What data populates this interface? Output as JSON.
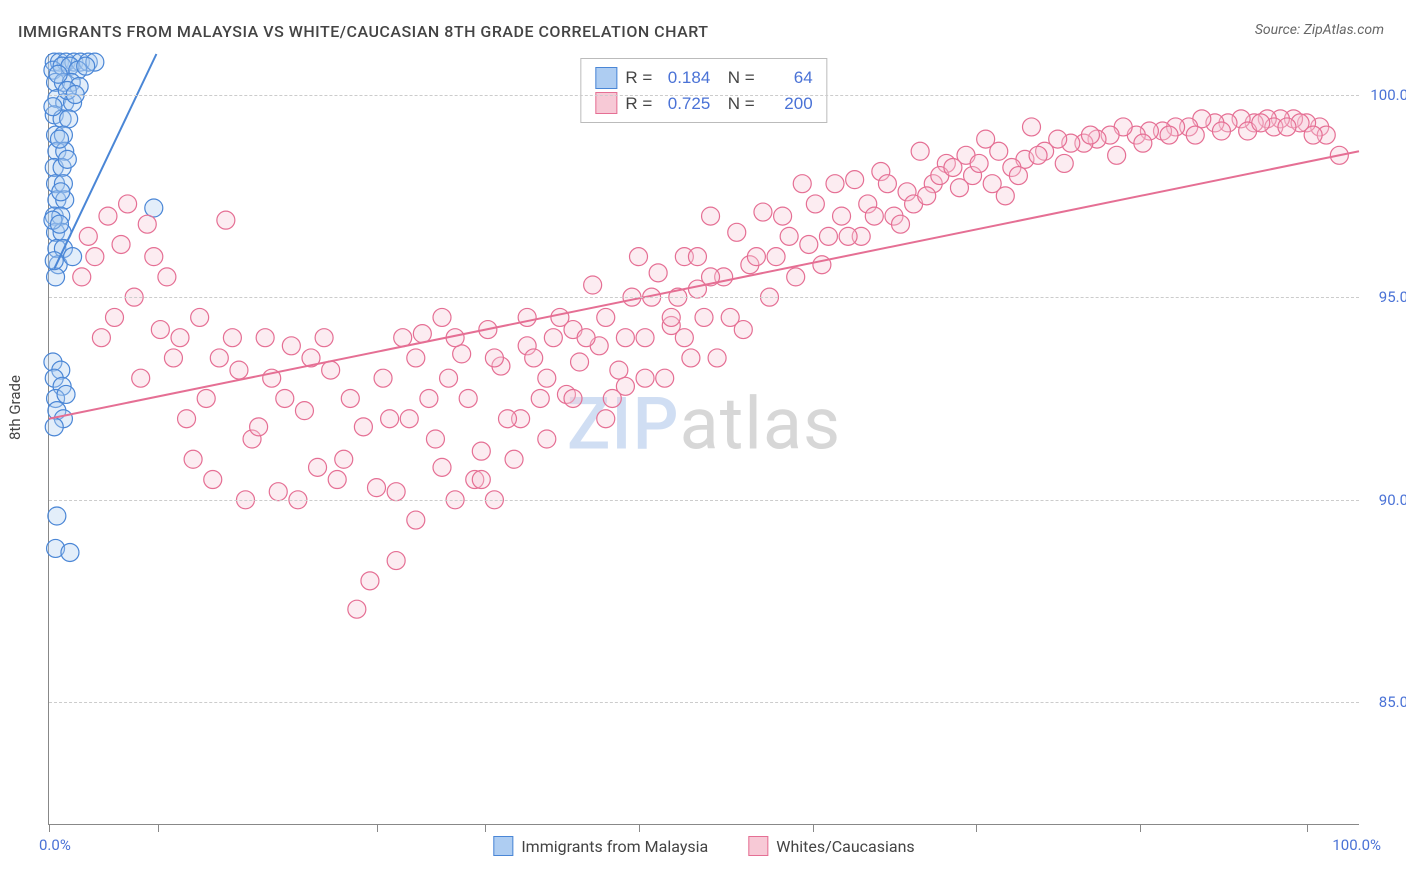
{
  "title": "IMMIGRANTS FROM MALAYSIA VS WHITE/CAUCASIAN 8TH GRADE CORRELATION CHART",
  "source_prefix": "Source: ",
  "source_name": "ZipAtlas.com",
  "ylabel": "8th Grade",
  "watermark_a": "ZIP",
  "watermark_b": "atlas",
  "chart": {
    "type": "scatter",
    "xlim": [
      0,
      100
    ],
    "ylim": [
      82,
      101
    ],
    "x_min_label": "0.0%",
    "x_max_label": "100.0%",
    "xtick_positions": [
      0,
      8.3,
      25,
      33.3,
      45,
      58.3,
      70.8,
      83.3,
      96
    ],
    "yticks": [
      {
        "v": 85,
        "label": "85.0%"
      },
      {
        "v": 90,
        "label": "90.0%"
      },
      {
        "v": 95,
        "label": "95.0%"
      },
      {
        "v": 100,
        "label": "100.0%"
      }
    ],
    "background_color": "#ffffff",
    "grid_color": "#cccccc",
    "axis_color": "#888888",
    "marker_radius": 9,
    "series": [
      {
        "id": "malaysia",
        "label": "Immigrants from Malaysia",
        "fill": "#aecdf2",
        "stroke": "#4a86d6",
        "R": "0.184",
        "N": "64",
        "trend": {
          "x1": 0.4,
          "y1": 95.7,
          "x2": 8.2,
          "y2": 101.0
        },
        "points": [
          [
            0.4,
            100.8
          ],
          [
            0.8,
            100.8
          ],
          [
            1.3,
            100.8
          ],
          [
            1.9,
            100.8
          ],
          [
            2.4,
            100.8
          ],
          [
            3.0,
            100.8
          ],
          [
            3.5,
            100.8
          ],
          [
            0.3,
            100.6
          ],
          [
            1.0,
            100.7
          ],
          [
            1.6,
            100.7
          ],
          [
            2.2,
            100.6
          ],
          [
            2.8,
            100.7
          ],
          [
            0.5,
            100.3
          ],
          [
            1.1,
            100.3
          ],
          [
            1.7,
            100.3
          ],
          [
            2.3,
            100.2
          ],
          [
            0.6,
            99.9
          ],
          [
            1.2,
            99.8
          ],
          [
            1.8,
            99.8
          ],
          [
            0.4,
            99.5
          ],
          [
            1.0,
            99.4
          ],
          [
            1.5,
            99.4
          ],
          [
            0.5,
            99.0
          ],
          [
            1.1,
            99.0
          ],
          [
            0.6,
            98.6
          ],
          [
            1.2,
            98.6
          ],
          [
            0.4,
            98.2
          ],
          [
            1.0,
            98.2
          ],
          [
            0.5,
            97.8
          ],
          [
            1.1,
            97.8
          ],
          [
            0.6,
            97.4
          ],
          [
            1.2,
            97.4
          ],
          [
            0.4,
            97.0
          ],
          [
            0.9,
            97.0
          ],
          [
            0.5,
            96.6
          ],
          [
            1.0,
            96.6
          ],
          [
            0.6,
            96.2
          ],
          [
            1.1,
            96.2
          ],
          [
            0.7,
            95.8
          ],
          [
            0.5,
            95.5
          ],
          [
            0.3,
            93.4
          ],
          [
            0.9,
            93.2
          ],
          [
            0.4,
            93.0
          ],
          [
            1.0,
            92.8
          ],
          [
            0.5,
            92.5
          ],
          [
            1.3,
            92.6
          ],
          [
            0.6,
            92.2
          ],
          [
            1.1,
            92.0
          ],
          [
            0.4,
            91.8
          ],
          [
            0.6,
            89.6
          ],
          [
            0.5,
            88.8
          ],
          [
            1.6,
            88.7
          ],
          [
            0.7,
            100.5
          ],
          [
            1.4,
            100.1
          ],
          [
            2.0,
            100.0
          ],
          [
            0.3,
            99.7
          ],
          [
            0.8,
            98.9
          ],
          [
            1.4,
            98.4
          ],
          [
            0.9,
            97.6
          ],
          [
            0.3,
            96.9
          ],
          [
            8.0,
            97.2
          ],
          [
            1.8,
            96.0
          ],
          [
            0.8,
            96.8
          ],
          [
            0.4,
            95.9
          ]
        ]
      },
      {
        "id": "white",
        "label": "Whites/Caucasians",
        "fill": "#f7c9d6",
        "stroke": "#e56f94",
        "R": "0.725",
        "N": "200",
        "trend": {
          "x1": 0.0,
          "y1": 92.0,
          "x2": 100.0,
          "y2": 98.6
        },
        "points": [
          [
            98.5,
            98.5
          ],
          [
            97.0,
            99.2
          ],
          [
            96.0,
            99.3
          ],
          [
            95.0,
            99.4
          ],
          [
            94.0,
            99.4
          ],
          [
            93.0,
            99.4
          ],
          [
            92.0,
            99.3
          ],
          [
            91.0,
            99.4
          ],
          [
            90.0,
            99.3
          ],
          [
            89.0,
            99.3
          ],
          [
            88.0,
            99.4
          ],
          [
            87.0,
            99.2
          ],
          [
            86.0,
            99.2
          ],
          [
            85.0,
            99.1
          ],
          [
            84.0,
            99.1
          ],
          [
            83.0,
            99.0
          ],
          [
            82.0,
            99.2
          ],
          [
            81.0,
            99.0
          ],
          [
            80.0,
            98.9
          ],
          [
            79.0,
            98.8
          ],
          [
            78.0,
            98.8
          ],
          [
            77.0,
            98.9
          ],
          [
            76.0,
            98.6
          ],
          [
            75.0,
            99.2
          ],
          [
            74.5,
            98.4
          ],
          [
            73.5,
            98.2
          ],
          [
            72.5,
            98.6
          ],
          [
            71.5,
            98.9
          ],
          [
            70.5,
            98.0
          ],
          [
            69.5,
            97.7
          ],
          [
            68.5,
            98.3
          ],
          [
            67.5,
            97.8
          ],
          [
            66.5,
            98.6
          ],
          [
            65.5,
            97.6
          ],
          [
            64.5,
            97.0
          ],
          [
            63.5,
            98.1
          ],
          [
            62.5,
            97.3
          ],
          [
            61.5,
            97.9
          ],
          [
            60.5,
            97.0
          ],
          [
            59.5,
            96.5
          ],
          [
            58.5,
            97.3
          ],
          [
            57.5,
            97.8
          ],
          [
            56.5,
            96.5
          ],
          [
            55.5,
            96.0
          ],
          [
            54.5,
            97.1
          ],
          [
            53.5,
            95.8
          ],
          [
            52.5,
            96.6
          ],
          [
            51.5,
            95.5
          ],
          [
            50.5,
            97.0
          ],
          [
            49.5,
            95.2
          ],
          [
            48.5,
            96.0
          ],
          [
            47.5,
            94.3
          ],
          [
            46.5,
            95.6
          ],
          [
            45.5,
            94.0
          ],
          [
            44.5,
            95.0
          ],
          [
            43.5,
            93.2
          ],
          [
            42.5,
            94.5
          ],
          [
            41.5,
            95.3
          ],
          [
            40.5,
            93.4
          ],
          [
            39.5,
            92.6
          ],
          [
            50.0,
            94.5
          ],
          [
            49.0,
            93.5
          ],
          [
            45.0,
            96.0
          ],
          [
            44.0,
            92.8
          ],
          [
            48.0,
            95.0
          ],
          [
            47.0,
            93.0
          ],
          [
            38.5,
            94.0
          ],
          [
            37.5,
            92.5
          ],
          [
            36.5,
            93.8
          ],
          [
            35.5,
            91.0
          ],
          [
            34.5,
            93.3
          ],
          [
            33.5,
            94.2
          ],
          [
            32.5,
            90.5
          ],
          [
            31.5,
            93.6
          ],
          [
            30.5,
            93.0
          ],
          [
            29.5,
            91.5
          ],
          [
            28.5,
            94.1
          ],
          [
            27.5,
            92.0
          ],
          [
            26.5,
            90.2
          ],
          [
            25.5,
            93.0
          ],
          [
            24.5,
            88.0
          ],
          [
            23.5,
            87.3
          ],
          [
            22.5,
            91.0
          ],
          [
            21.5,
            93.2
          ],
          [
            20.5,
            90.8
          ],
          [
            19.5,
            92.2
          ],
          [
            18.5,
            93.8
          ],
          [
            17.5,
            90.2
          ],
          [
            16.5,
            94.0
          ],
          [
            15.5,
            91.5
          ],
          [
            14.5,
            93.2
          ],
          [
            13.5,
            96.9
          ],
          [
            12.5,
            90.5
          ],
          [
            11.5,
            94.5
          ],
          [
            10.5,
            92.0
          ],
          [
            9.5,
            93.5
          ],
          [
            8.5,
            94.2
          ],
          [
            7.5,
            96.8
          ],
          [
            6.5,
            95.0
          ],
          [
            5.5,
            96.3
          ],
          [
            34.0,
            90.0
          ],
          [
            31.0,
            90.0
          ],
          [
            28.0,
            89.5
          ],
          [
            30.0,
            90.8
          ],
          [
            33.0,
            91.2
          ],
          [
            36.0,
            92.0
          ],
          [
            38.0,
            93.0
          ],
          [
            40.0,
            94.2
          ],
          [
            42.0,
            93.8
          ],
          [
            25.0,
            90.3
          ],
          [
            23.0,
            92.5
          ],
          [
            21.0,
            94.0
          ],
          [
            19.0,
            90.0
          ],
          [
            17.0,
            93.0
          ],
          [
            15.0,
            90.0
          ],
          [
            13.0,
            93.5
          ],
          [
            11.0,
            91.0
          ],
          [
            9.0,
            95.5
          ],
          [
            7.0,
            93.0
          ],
          [
            5.0,
            94.5
          ],
          [
            4.5,
            97.0
          ],
          [
            3.5,
            96.0
          ],
          [
            2.5,
            95.5
          ],
          [
            4.0,
            94.0
          ],
          [
            3.0,
            96.5
          ],
          [
            6.0,
            97.3
          ],
          [
            8.0,
            96.0
          ],
          [
            10.0,
            94.0
          ],
          [
            12.0,
            92.5
          ],
          [
            14.0,
            94.0
          ],
          [
            16.0,
            91.8
          ],
          [
            18.0,
            92.5
          ],
          [
            20.0,
            93.5
          ],
          [
            22.0,
            90.5
          ],
          [
            24.0,
            91.8
          ],
          [
            26.0,
            92.0
          ],
          [
            28.0,
            93.5
          ],
          [
            30.0,
            94.5
          ],
          [
            32.0,
            92.5
          ],
          [
            34.0,
            93.5
          ],
          [
            36.5,
            94.5
          ],
          [
            38.0,
            91.5
          ],
          [
            40.0,
            92.5
          ],
          [
            42.5,
            92.0
          ],
          [
            44.0,
            94.0
          ],
          [
            46.0,
            95.0
          ],
          [
            48.5,
            94.0
          ],
          [
            50.5,
            95.5
          ],
          [
            52.0,
            94.5
          ],
          [
            54.0,
            96.0
          ],
          [
            56.0,
            97.0
          ],
          [
            58.0,
            96.3
          ],
          [
            60.0,
            97.8
          ],
          [
            62.0,
            96.5
          ],
          [
            64.0,
            97.8
          ],
          [
            66.0,
            97.3
          ],
          [
            68.0,
            98.0
          ],
          [
            70.0,
            98.5
          ],
          [
            72.0,
            97.8
          ],
          [
            74.0,
            98.0
          ],
          [
            51.0,
            93.5
          ],
          [
            53.0,
            94.2
          ],
          [
            55.0,
            95.0
          ],
          [
            57.0,
            95.5
          ],
          [
            59.0,
            95.8
          ],
          [
            61.0,
            96.5
          ],
          [
            63.0,
            97.0
          ],
          [
            65.0,
            96.8
          ],
          [
            67.0,
            97.5
          ],
          [
            69.0,
            98.2
          ],
          [
            71.0,
            98.3
          ],
          [
            73.0,
            97.5
          ],
          [
            75.5,
            98.5
          ],
          [
            77.5,
            98.3
          ],
          [
            79.5,
            99.0
          ],
          [
            81.5,
            98.5
          ],
          [
            83.5,
            98.8
          ],
          [
            85.5,
            99.0
          ],
          [
            87.5,
            99.0
          ],
          [
            89.5,
            99.1
          ],
          [
            27.0,
            94.0
          ],
          [
            29.0,
            92.5
          ],
          [
            31.0,
            94.0
          ],
          [
            33.0,
            90.5
          ],
          [
            35.0,
            92.0
          ],
          [
            37.0,
            93.5
          ],
          [
            39.0,
            94.5
          ],
          [
            41.0,
            94.0
          ],
          [
            43.0,
            92.5
          ],
          [
            45.5,
            93.0
          ],
          [
            47.5,
            94.5
          ],
          [
            49.5,
            96.0
          ],
          [
            26.5,
            88.5
          ],
          [
            91.5,
            99.1
          ],
          [
            93.5,
            99.2
          ],
          [
            95.5,
            99.3
          ],
          [
            97.5,
            99.0
          ],
          [
            96.5,
            99.0
          ],
          [
            94.5,
            99.2
          ],
          [
            92.5,
            99.3
          ]
        ]
      }
    ]
  }
}
